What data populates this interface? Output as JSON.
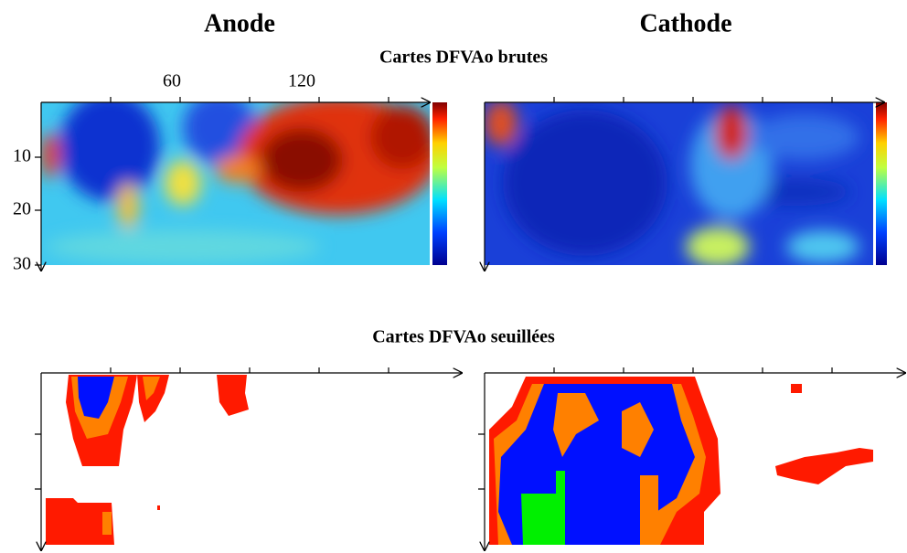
{
  "columns": {
    "left": "Anode",
    "right": "Cathode"
  },
  "rows": {
    "top": "Cartes DFVAo brutes",
    "bottom": "Cartes DFVAo seuillées"
  },
  "top_x_ticks": [
    "60",
    "120"
  ],
  "y_ticks": [
    "10",
    "20",
    "30"
  ]
}
